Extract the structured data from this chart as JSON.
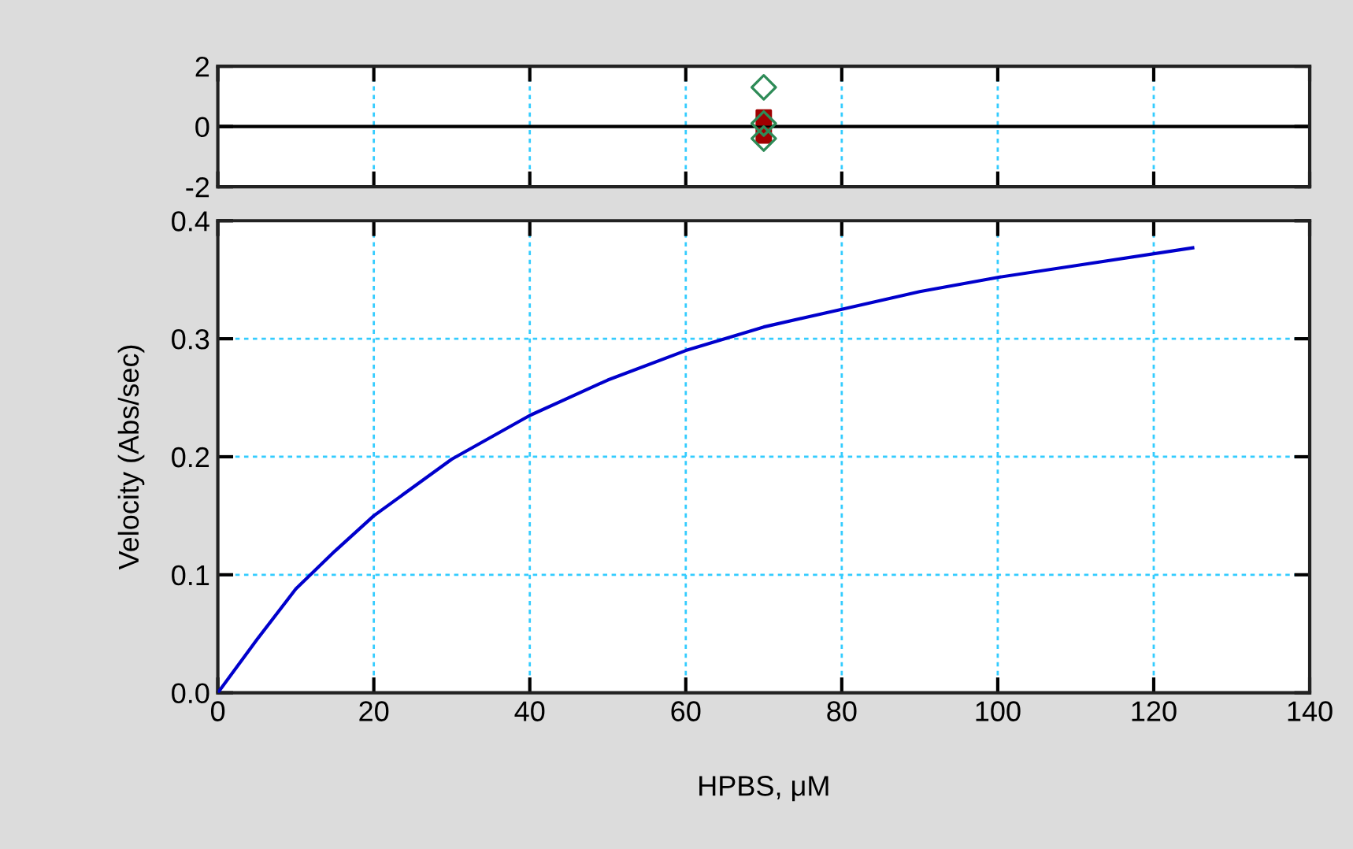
{
  "chart_data": [
    {
      "type": "scatter",
      "xlim": [
        0,
        140
      ],
      "xticks": [
        0,
        20,
        40,
        60,
        80,
        100,
        120,
        140
      ],
      "ylim": [
        -2,
        2
      ],
      "yticks": [
        -2,
        0,
        2
      ],
      "tick_labels": "y",
      "grid": "x",
      "ref_lines": [
        {
          "axis": "y",
          "value": 0,
          "color": "#000000"
        }
      ],
      "series": [
        {
          "x": [
            70,
            70
          ],
          "values": [
            0.3,
            -0.3
          ],
          "color": "#a00000",
          "marker": "square"
        },
        {
          "x": [
            70,
            70,
            70
          ],
          "values": [
            1.3,
            0.1,
            -0.4
          ],
          "color": "#2e8b57",
          "marker": "diamond"
        }
      ]
    },
    {
      "type": "line",
      "xlabel": "HPBS, μM",
      "ylabel": "Velocity (Abs/sec)",
      "xlim": [
        0,
        140
      ],
      "xticks": [
        0,
        20,
        40,
        60,
        80,
        100,
        120,
        140
      ],
      "ylim": [
        0,
        0.4
      ],
      "yticks": [
        {
          "value": 0,
          "label": "0.0"
        },
        0.1,
        0.2,
        0.3,
        0.4
      ],
      "grid": true,
      "marker": "none",
      "series": [
        {
          "x": [
            0,
            5,
            10,
            15,
            20,
            30,
            40,
            50,
            60,
            70,
            80,
            90,
            100,
            110,
            125
          ],
          "values": [
            0,
            0.045,
            0.088,
            0.12,
            0.15,
            0.198,
            0.235,
            0.265,
            0.29,
            0.31,
            0.325,
            0.34,
            0.352,
            0.362,
            0.377
          ],
          "color": "#0000cc"
        }
      ]
    }
  ]
}
